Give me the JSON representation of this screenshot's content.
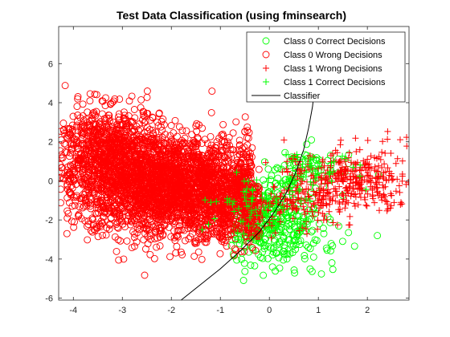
{
  "chart_data": {
    "type": "scatter",
    "title": "Test Data Classification (using fminsearch)",
    "xlabel": "",
    "ylabel": "",
    "xlim": [
      -4.3,
      2.85
    ],
    "ylim": [
      -6.1,
      7.9
    ],
    "xticks": [
      -4,
      -3,
      -2,
      -1,
      0,
      1,
      2
    ],
    "yticks": [
      -6,
      -4,
      -2,
      0,
      2,
      4,
      6
    ],
    "grid": false,
    "legend_position": "top-right",
    "series": [
      {
        "name": "Class 0 Correct Decisions",
        "marker": "circle",
        "color": "#00ff00",
        "approx_count": 450,
        "clusters": [
          {
            "cx": 0.05,
            "cy": -2.2,
            "sx": 0.45,
            "sy": 1.0,
            "n": 340,
            "xmin": -0.8
          },
          {
            "cx": 0.45,
            "cy": 0.3,
            "sx": 0.35,
            "sy": 0.6,
            "n": 50,
            "xmin": -0.3
          },
          {
            "cx": 1.0,
            "cy": 0.6,
            "sx": 0.4,
            "sy": 0.5,
            "n": 30,
            "xmin": 0.5
          },
          {
            "cx": 1.0,
            "cy": -3.2,
            "sx": 0.5,
            "sy": 0.6,
            "n": 30,
            "xmin": 0.3
          }
        ]
      },
      {
        "name": "Class 0 Wrong Decisions",
        "marker": "circle",
        "color": "#ff0000",
        "approx_count": 4000,
        "clusters": [
          {
            "cx": -2.0,
            "cy": 0.0,
            "sx": 0.95,
            "sy": 1.2,
            "n": 2000,
            "xmax": -0.35
          },
          {
            "cx": -3.3,
            "cy": 1.6,
            "sx": 0.55,
            "sy": 1.1,
            "n": 800,
            "xmax": -1.0
          },
          {
            "cx": -1.0,
            "cy": -1.3,
            "sx": 0.6,
            "sy": 1.0,
            "n": 600,
            "xmax": -0.2
          },
          {
            "cx": -2.6,
            "cy": -1.0,
            "sx": 0.7,
            "sy": 1.0,
            "n": 400,
            "xmax": -0.8
          }
        ]
      },
      {
        "name": "Class 1 Wrong Decisions",
        "marker": "plus",
        "color": "#ff0000",
        "approx_count": 560,
        "clusters": [
          {
            "cx": 1.7,
            "cy": 0.0,
            "sx": 0.7,
            "sy": 0.85,
            "n": 420,
            "xmin": 0.1
          },
          {
            "cx": 0.5,
            "cy": -1.2,
            "sx": 0.45,
            "sy": 0.6,
            "n": 80,
            "xmin": -0.2
          },
          {
            "cx": -0.3,
            "cy": -1.6,
            "sx": 0.5,
            "sy": 0.6,
            "n": 60,
            "xmin": -1.0
          }
        ]
      },
      {
        "name": "Class 1 Correct Decisions",
        "marker": "plus",
        "color": "#00ff00",
        "approx_count": 120,
        "clusters": [
          {
            "cx": -0.2,
            "cy": -1.3,
            "sx": 0.55,
            "sy": 0.7,
            "n": 80,
            "xmin": -1.4
          },
          {
            "cx": 0.9,
            "cy": 0.6,
            "sx": 0.45,
            "sy": 0.5,
            "n": 40,
            "xmin": 0.3
          }
        ]
      },
      {
        "name": "Classifier",
        "marker": "line",
        "color": "#000000",
        "x": [
          -1.8,
          -1.4,
          -1.0,
          -0.6,
          -0.2,
          0.1,
          0.35,
          0.55,
          0.7,
          0.8,
          0.88,
          0.92
        ],
        "y": [
          -6.1,
          -5.3,
          -4.5,
          -3.6,
          -2.6,
          -1.6,
          -0.6,
          0.5,
          1.6,
          2.7,
          3.8,
          4.7
        ]
      }
    ]
  }
}
